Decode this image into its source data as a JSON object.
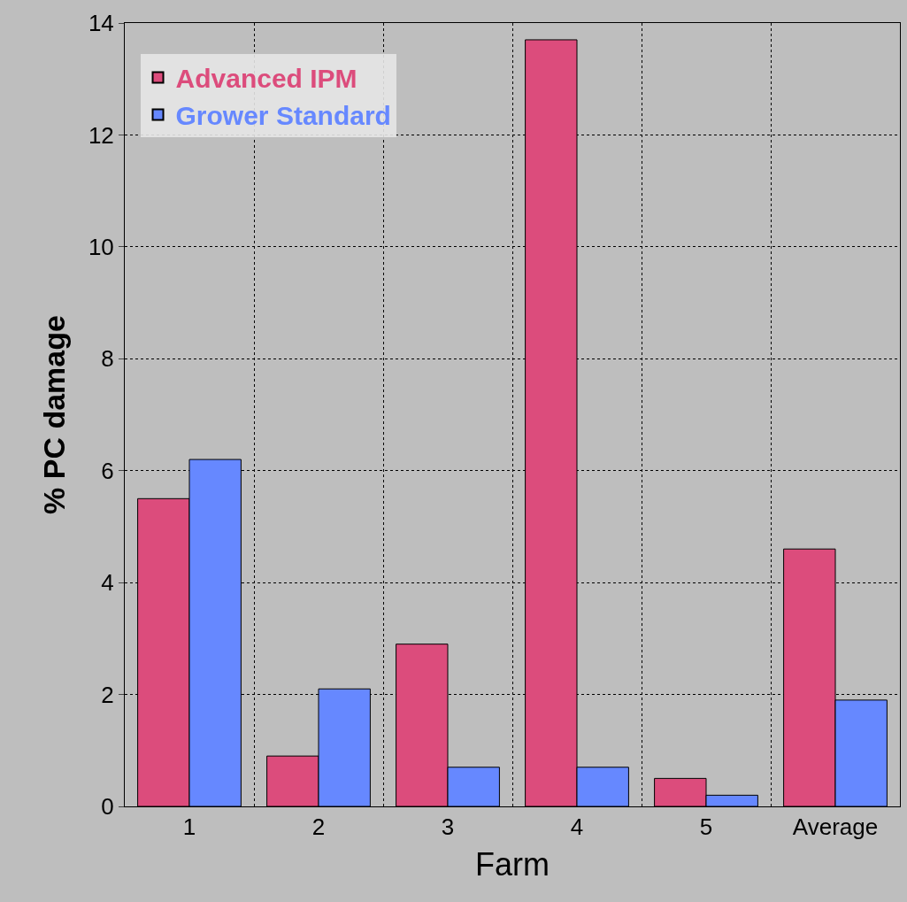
{
  "chart_data": {
    "type": "bar",
    "xlabel": "Farm",
    "ylabel": "% PC damage",
    "categories": [
      "1",
      "2",
      "3",
      "4",
      "5",
      "Average"
    ],
    "series": [
      {
        "name": "Advanced IPM",
        "color": "#dc4c7c",
        "values": [
          5.5,
          0.9,
          2.9,
          13.7,
          0.5,
          4.6
        ]
      },
      {
        "name": "Grower Standard",
        "color": "#6688ff",
        "values": [
          6.2,
          2.1,
          0.7,
          0.7,
          0.2,
          1.9
        ]
      }
    ],
    "ylim": [
      0,
      14
    ],
    "yticks": [
      0,
      2,
      4,
      6,
      8,
      10,
      12,
      14
    ],
    "grid": true,
    "legend": "top left"
  }
}
